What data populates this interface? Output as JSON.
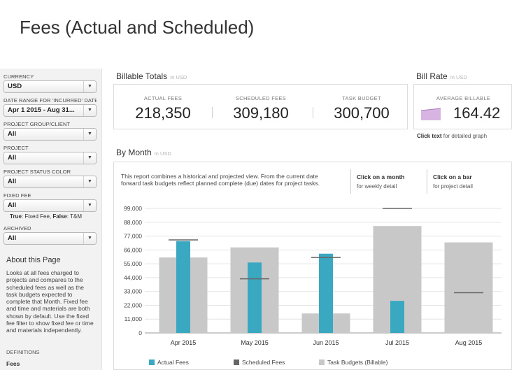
{
  "page_title": "Fees (Actual and Scheduled)",
  "sidebar": {
    "filters": [
      {
        "label": "CURRENCY",
        "value": "USD"
      },
      {
        "label": "DATE RANGE FOR 'INCURRED' DATES",
        "value": "Apr 1 2015 - Aug 31..."
      },
      {
        "label": "PROJECT GROUP/CLIENT",
        "value": "All"
      },
      {
        "label": "PROJECT",
        "value": "All"
      },
      {
        "label": "PROJECT STATUS COLOR",
        "value": "All"
      },
      {
        "label": "FIXED FEE",
        "value": "All"
      },
      {
        "label": "ARCHIVED",
        "value": "All"
      }
    ],
    "fixed_fee_note": {
      "true_label": "True",
      "true_text": ": Fixed Fee, ",
      "false_label": "False",
      "false_text": ": T&M"
    },
    "about_title": "About this Page",
    "about_text": "Looks at all fees charged to projects and compares to the scheduled fees as well as the task budgets expected to complete that Month. Fixed fee and time and materials are both shown by default. Use the fixed fee filter to show fixed fee or time and materials independently.",
    "definitions_label": "DEFINITIONS",
    "definitions_first": "Fees"
  },
  "billable_totals": {
    "title": "Billable Totals",
    "unit": "In USD",
    "kpis": [
      {
        "label": "ACTUAL FEES",
        "value": "218,350"
      },
      {
        "label": "SCHEDULED FEES",
        "value": "309,180"
      },
      {
        "label": "TASK BUDGET",
        "value": "300,700"
      }
    ]
  },
  "bill_rate": {
    "title": "Bill Rate",
    "unit": "In USD",
    "label": "AVERAGE BILLABLE",
    "value": "164.42",
    "link_bold": "Click text",
    "link_text": " for detailed graph",
    "spark_color": "#d8b4e2",
    "spark_stroke": "#a97bbb"
  },
  "by_month": {
    "title": "By Month",
    "unit": "In USD",
    "description": "This report combines a historical and projected view.  From the current date forward task budgets reflect planned complete (due) dates for project tasks.",
    "hint_month": {
      "title": "Click on a month",
      "sub": "for weekly detail"
    },
    "hint_bar": {
      "title": "Click on a bar",
      "sub": "for project detail"
    }
  },
  "chart_data": {
    "type": "bar",
    "categories": [
      "Apr 2015",
      "May 2015",
      "Jun 2015",
      "Jul 2015",
      "Aug 2015"
    ],
    "series": [
      {
        "name": "Actual Fees",
        "values": [
          73000,
          56000,
          63000,
          25500,
          0
        ],
        "color": "#3aa8c1"
      },
      {
        "name": "Scheduled Fees",
        "values": [
          74000,
          43000,
          60000,
          99000,
          32000
        ],
        "color": "#666666"
      },
      {
        "name": "Task Budgets (Billable)",
        "values": [
          60000,
          68000,
          15500,
          85000,
          72000
        ],
        "color": "#c8c8c8"
      }
    ],
    "yticks": [
      "0",
      "11,000",
      "22,000",
      "33,000",
      "44,000",
      "55,000",
      "66,000",
      "77,000",
      "88,000",
      "99,000"
    ],
    "ylim": [
      0,
      99000
    ],
    "grid": true,
    "legend_position": "bottom"
  }
}
